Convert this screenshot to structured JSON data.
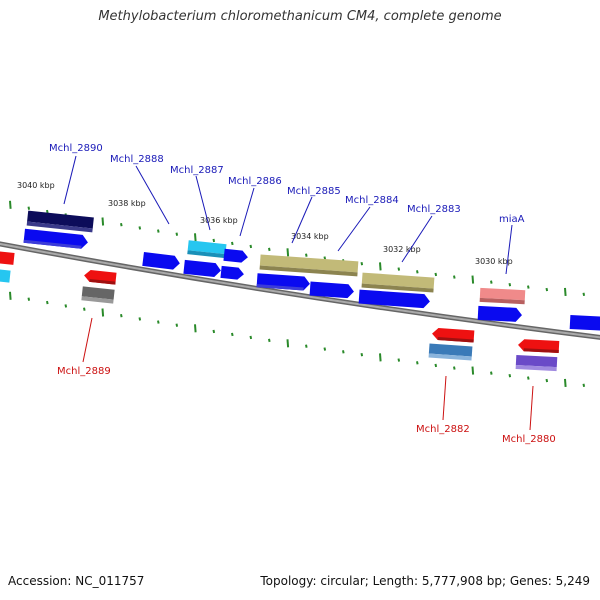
{
  "title": "Methylobacterium chloromethanicum CM4, complete genome",
  "footer": {
    "accession": "Accession: NC_011757",
    "summary": "Topology: circular; Length: 5,777,908 bp; Genes: 5,249"
  },
  "kbp_labels": [
    "3040 kbp",
    "3038 kbp",
    "3036 kbp",
    "3034 kbp",
    "3032 kbp",
    "3030 kbp"
  ],
  "gene_labels": {
    "top": [
      "Mchl_2890",
      "Mchl_2888",
      "Mchl_2887",
      "Mchl_2886",
      "Mchl_2885",
      "Mchl_2884",
      "Mchl_2883",
      "miaA"
    ],
    "bottom": [
      "Mchl_2889",
      "Mchl_2882",
      "Mchl_2880"
    ]
  },
  "colors": {
    "forward_label": "#1a1ab8",
    "reverse_label": "#cc1111",
    "cds_forward": "#0a0af0",
    "cds_reverse": "#ee1111",
    "backbone": "#888888",
    "tick": "#2a8a2a"
  },
  "icons": {
    "gene_arrow": "gene-arrow-icon"
  }
}
